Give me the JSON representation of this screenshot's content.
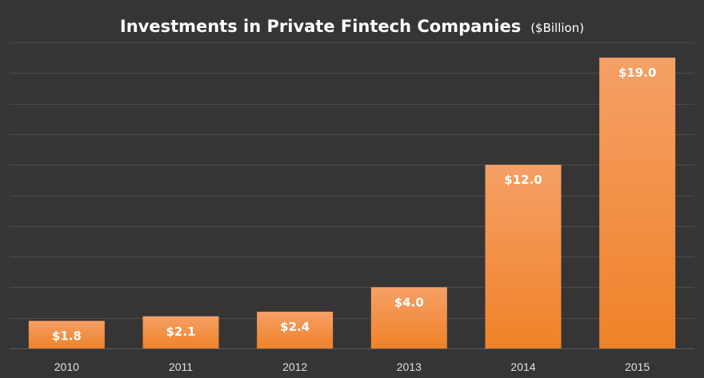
{
  "chart_data": {
    "type": "bar",
    "title": "Investments in Private Fintech Companies",
    "subtitle": "($Billion)",
    "categories": [
      "2010",
      "2011",
      "2012",
      "2013",
      "2014",
      "2015"
    ],
    "values": [
      1.8,
      2.1,
      2.4,
      4.0,
      12.0,
      19.0
    ],
    "data_labels": [
      "$1.8",
      "$2.1",
      "$2.4",
      "$4.0",
      "$12.0",
      "$19.0"
    ],
    "xlabel": "",
    "ylabel": "",
    "ylim": [
      0,
      20
    ],
    "grid": true,
    "legend": "none",
    "colors": {
      "background": "#353535",
      "bar_top": "#f5a066",
      "bar_bottom": "#ef8228",
      "grid": "#4d4d4d"
    }
  }
}
